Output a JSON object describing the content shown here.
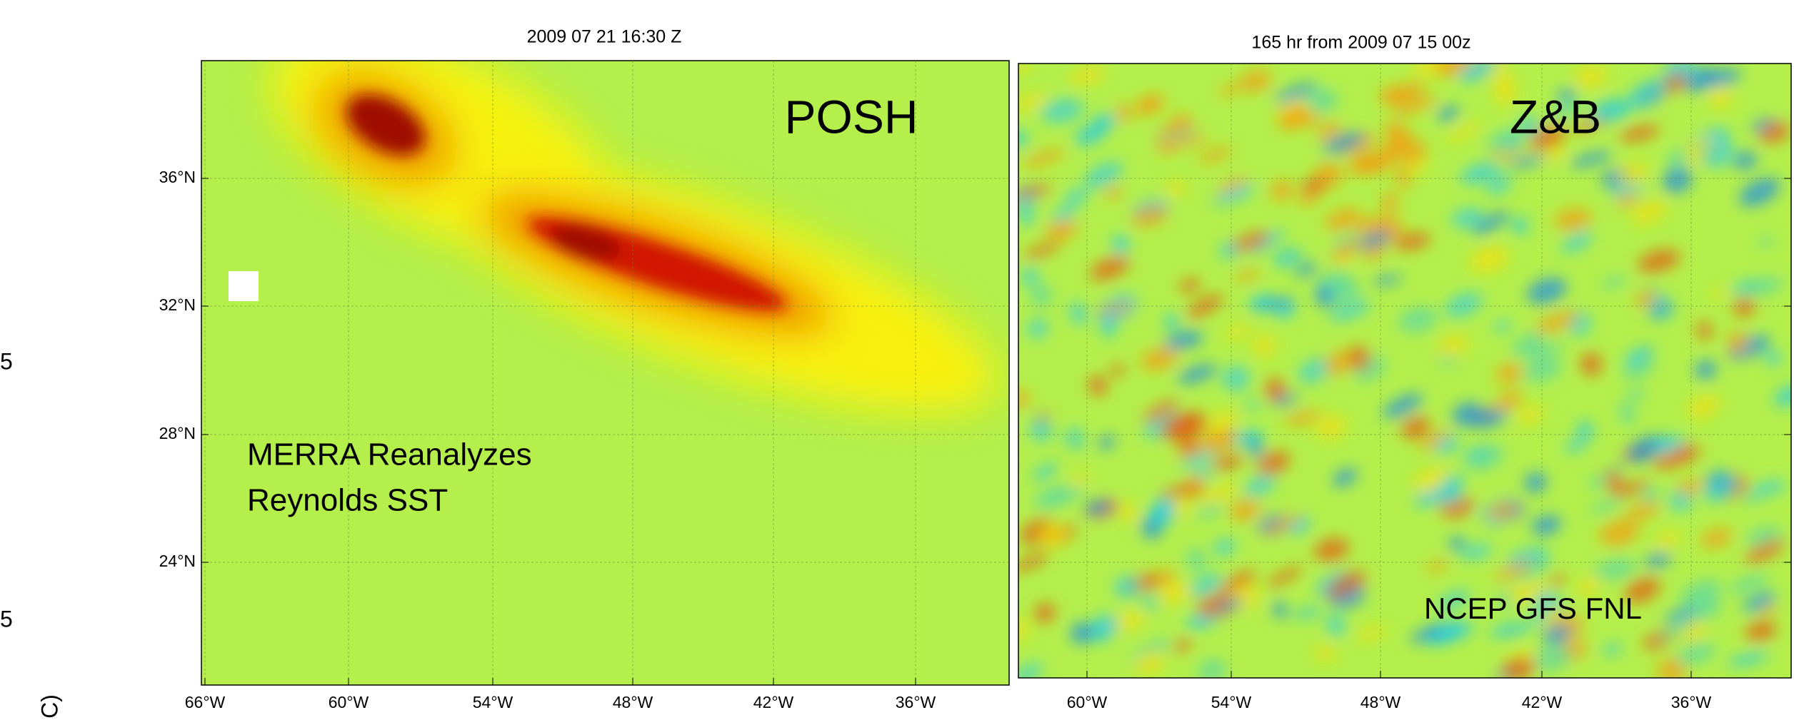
{
  "left_margin": {
    "labels": [
      "5",
      "5"
    ],
    "axis_fragment": "C)"
  },
  "panels": [
    {
      "title": "2009 07 21 16:30 Z",
      "name": "POSH",
      "annotation": [
        "MERRA Reanalyzes",
        "Reynolds SST"
      ],
      "xticks": [
        "66°W",
        "60°W",
        "54°W",
        "48°W",
        "42°W",
        "36°W"
      ],
      "yticks": [
        "36°N",
        "32°N",
        "28°N",
        "24°N"
      ]
    },
    {
      "title": "165 hr from 2009 07 15 00z",
      "name": "Z&B",
      "annotation": [
        "NCEP GFS FNL"
      ],
      "xticks": [
        "60°W",
        "54°W",
        "48°W",
        "42°W",
        "36°W"
      ]
    }
  ]
}
